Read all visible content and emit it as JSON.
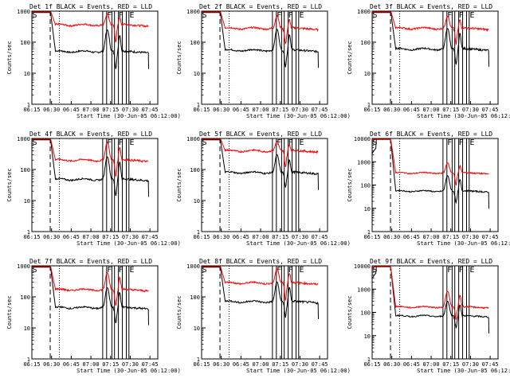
{
  "chart_data": [
    {
      "type": "line",
      "title": "Det 1f BLACK = Events, RED = LLD",
      "xlabel": "Start Time (30-Jun-05 06:12:00)",
      "ylabel": "Counts/sec",
      "xticks": [
        "06:15",
        "06:30",
        "06:45",
        "07:00",
        "07:15",
        "07:30",
        "07:45"
      ],
      "yticks": [
        "1",
        "10",
        "100",
        "1000"
      ],
      "ylim": [
        1,
        1000
      ],
      "markers": [
        "S",
        "F",
        "F",
        "E"
      ],
      "series": [
        {
          "name": "Events",
          "color": "#000000",
          "level": 50,
          "peak": 250
        },
        {
          "name": "LLD",
          "color": "#ff0000",
          "level": 360,
          "peak": 800
        }
      ]
    },
    {
      "type": "line",
      "title": "Det 2f BLACK = Events, RED = LLD",
      "xlabel": "Start Time (30-Jun-05 06:12:00)",
      "ylabel": "Counts/sec",
      "xticks": [
        "06:15",
        "06:30",
        "06:45",
        "07:00",
        "07:15",
        "07:30",
        "07:45"
      ],
      "yticks": [
        "1",
        "10",
        "100",
        "1000"
      ],
      "ylim": [
        1,
        1000
      ],
      "markers": [
        "S",
        "F",
        "F",
        "E"
      ],
      "series": [
        {
          "name": "Events",
          "color": "#000000",
          "level": 55,
          "peak": 260
        },
        {
          "name": "LLD",
          "color": "#ff0000",
          "level": 280,
          "peak": 700
        }
      ]
    },
    {
      "type": "line",
      "title": "Det 3f BLACK = Events, RED = LLD",
      "xlabel": "Start Time (30-Jun-05 06:12:00)",
      "ylabel": "Counts/sec",
      "xticks": [
        "06:15",
        "06:30",
        "06:45",
        "07:00",
        "07:15",
        "07:30",
        "07:45"
      ],
      "yticks": [
        "1",
        "10",
        "100",
        "1000"
      ],
      "ylim": [
        1,
        1000
      ],
      "markers": [
        "S",
        "F",
        "F",
        "E"
      ],
      "series": [
        {
          "name": "Events",
          "color": "#000000",
          "level": 60,
          "peak": 280
        },
        {
          "name": "LLD",
          "color": "#ff0000",
          "level": 280,
          "peak": 700
        }
      ]
    },
    {
      "type": "line",
      "title": "Det 4f BLACK = Events, RED = LLD",
      "xlabel": "Start Time (30-Jun-05 06:12:00)",
      "ylabel": "Counts/sec",
      "xticks": [
        "06:15",
        "06:30",
        "06:45",
        "07:00",
        "07:15",
        "07:30",
        "07:45"
      ],
      "yticks": [
        "1",
        "10",
        "100",
        "1000"
      ],
      "ylim": [
        1,
        1000
      ],
      "markers": [
        "S",
        "F",
        "F",
        "E"
      ],
      "series": [
        {
          "name": "Events",
          "color": "#000000",
          "level": 48,
          "peak": 260
        },
        {
          "name": "LLD",
          "color": "#ff0000",
          "level": 200,
          "peak": 750
        }
      ]
    },
    {
      "type": "line",
      "title": "Det 5f BLACK = Events, RED = LLD",
      "xlabel": "Start Time (30-Jun-05 06:12:00)",
      "ylabel": "Counts/sec",
      "xticks": [
        "06:15",
        "06:30",
        "06:45",
        "07:00",
        "07:15",
        "07:30",
        "07:45"
      ],
      "yticks": [
        "1",
        "10",
        "100",
        "1000"
      ],
      "ylim": [
        1,
        1000
      ],
      "markers": [
        "S",
        "F",
        "F",
        "E"
      ],
      "series": [
        {
          "name": "Events",
          "color": "#000000",
          "level": 80,
          "peak": 300
        },
        {
          "name": "LLD",
          "color": "#ff0000",
          "level": 400,
          "peak": 800
        }
      ]
    },
    {
      "type": "line",
      "title": "Det 6f BLACK = Events, RED = LLD",
      "xlabel": "Start Time (30-Jun-05 06:12:00)",
      "ylabel": "Counts/sec",
      "xticks": [
        "06:15",
        "06:30",
        "06:45",
        "07:00",
        "07:15",
        "07:30",
        "07:45"
      ],
      "yticks": [
        "1",
        "10",
        "100",
        "1000",
        "10000"
      ],
      "ylim": [
        1,
        10000
      ],
      "markers": [
        "S",
        "F",
        "F",
        "E"
      ],
      "series": [
        {
          "name": "Events",
          "color": "#000000",
          "level": 55,
          "peak": 250
        },
        {
          "name": "LLD",
          "color": "#ff0000",
          "level": 330,
          "peak": 900
        }
      ]
    },
    {
      "type": "line",
      "title": "Det 7f BLACK = Events, RED = LLD",
      "xlabel": "Start Time (30-Jun-05 06:12:00)",
      "ylabel": "Counts/sec",
      "xticks": [
        "06:15",
        "06:30",
        "06:45",
        "07:00",
        "07:15",
        "07:30",
        "07:45"
      ],
      "yticks": [
        "1",
        "10",
        "100",
        "1000"
      ],
      "ylim": [
        1,
        1000
      ],
      "markers": [
        "S",
        "F",
        "F",
        "E"
      ],
      "series": [
        {
          "name": "Events",
          "color": "#000000",
          "level": 45,
          "peak": 200
        },
        {
          "name": "LLD",
          "color": "#ff0000",
          "level": 170,
          "peak": 600
        }
      ]
    },
    {
      "type": "line",
      "title": "Det 8f BLACK = Events, RED = LLD",
      "xlabel": "Start Time (30-Jun-05 06:12:00)",
      "ylabel": "Counts/sec",
      "xticks": [
        "06:15",
        "06:30",
        "06:45",
        "07:00",
        "07:15",
        "07:30",
        "07:45"
      ],
      "yticks": [
        "1",
        "10",
        "100",
        "1000"
      ],
      "ylim": [
        1,
        1000
      ],
      "markers": [
        "S",
        "F",
        "F",
        "E"
      ],
      "series": [
        {
          "name": "Events",
          "color": "#000000",
          "level": 70,
          "peak": 300
        },
        {
          "name": "LLD",
          "color": "#ff0000",
          "level": 280,
          "peak": 800
        }
      ]
    },
    {
      "type": "line",
      "title": "Det 9f BLACK = Events, RED = LLD",
      "xlabel": "Start Time (30-Jun-05 06:12:00)",
      "ylabel": "Counts/sec",
      "xticks": [
        "06:15",
        "06:30",
        "06:45",
        "07:00",
        "07:15",
        "07:30",
        "07:45"
      ],
      "yticks": [
        "1",
        "10",
        "100",
        "1000",
        "10000"
      ],
      "ylim": [
        1,
        10000
      ],
      "markers": [
        "S",
        "F",
        "F",
        "E"
      ],
      "series": [
        {
          "name": "Events",
          "color": "#000000",
          "level": 70,
          "peak": 300
        },
        {
          "name": "LLD",
          "color": "#ff0000",
          "level": 170,
          "peak": 800
        }
      ]
    }
  ]
}
